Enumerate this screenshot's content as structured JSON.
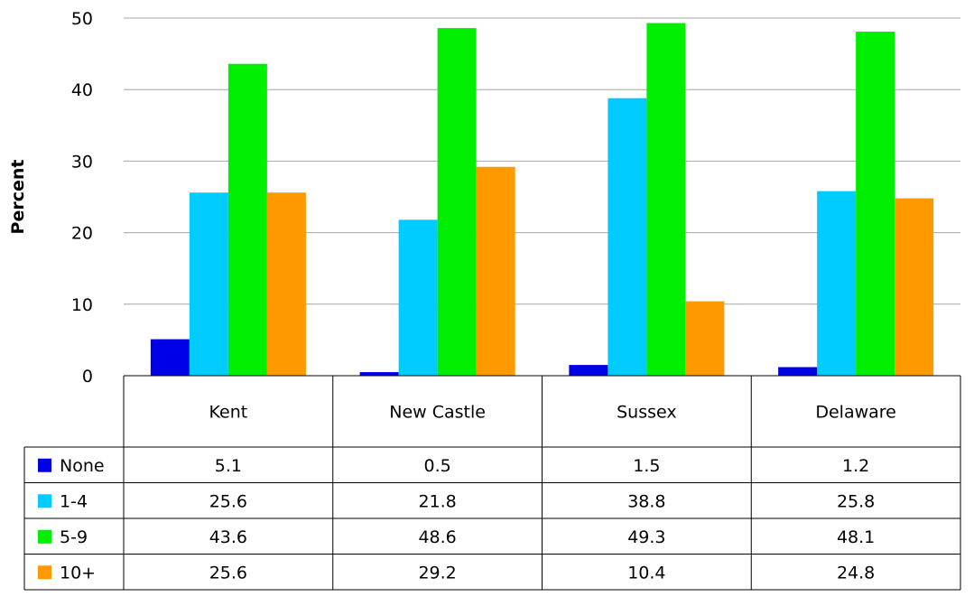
{
  "chart_data": {
    "type": "bar",
    "title": "",
    "xlabel": "",
    "ylabel": "Percent",
    "ylim": [
      0,
      50
    ],
    "yticks": [
      0,
      10,
      20,
      30,
      40,
      50
    ],
    "grid": true,
    "legend": "table-left",
    "data_table": true,
    "categories": [
      "Kent",
      "New Castle",
      "Sussex",
      "Delaware"
    ],
    "series": [
      {
        "name": "None",
        "color": "#0000e6",
        "values": [
          5.1,
          0.5,
          1.5,
          1.2
        ]
      },
      {
        "name": "1-4",
        "color": "#00ccff",
        "values": [
          25.6,
          21.8,
          38.8,
          25.8
        ]
      },
      {
        "name": "5-9",
        "color": "#00ee00",
        "values": [
          43.6,
          48.6,
          49.3,
          48.1
        ]
      },
      {
        "name": "10+",
        "color": "#ff9900",
        "values": [
          25.6,
          29.2,
          10.4,
          24.8
        ]
      }
    ]
  }
}
